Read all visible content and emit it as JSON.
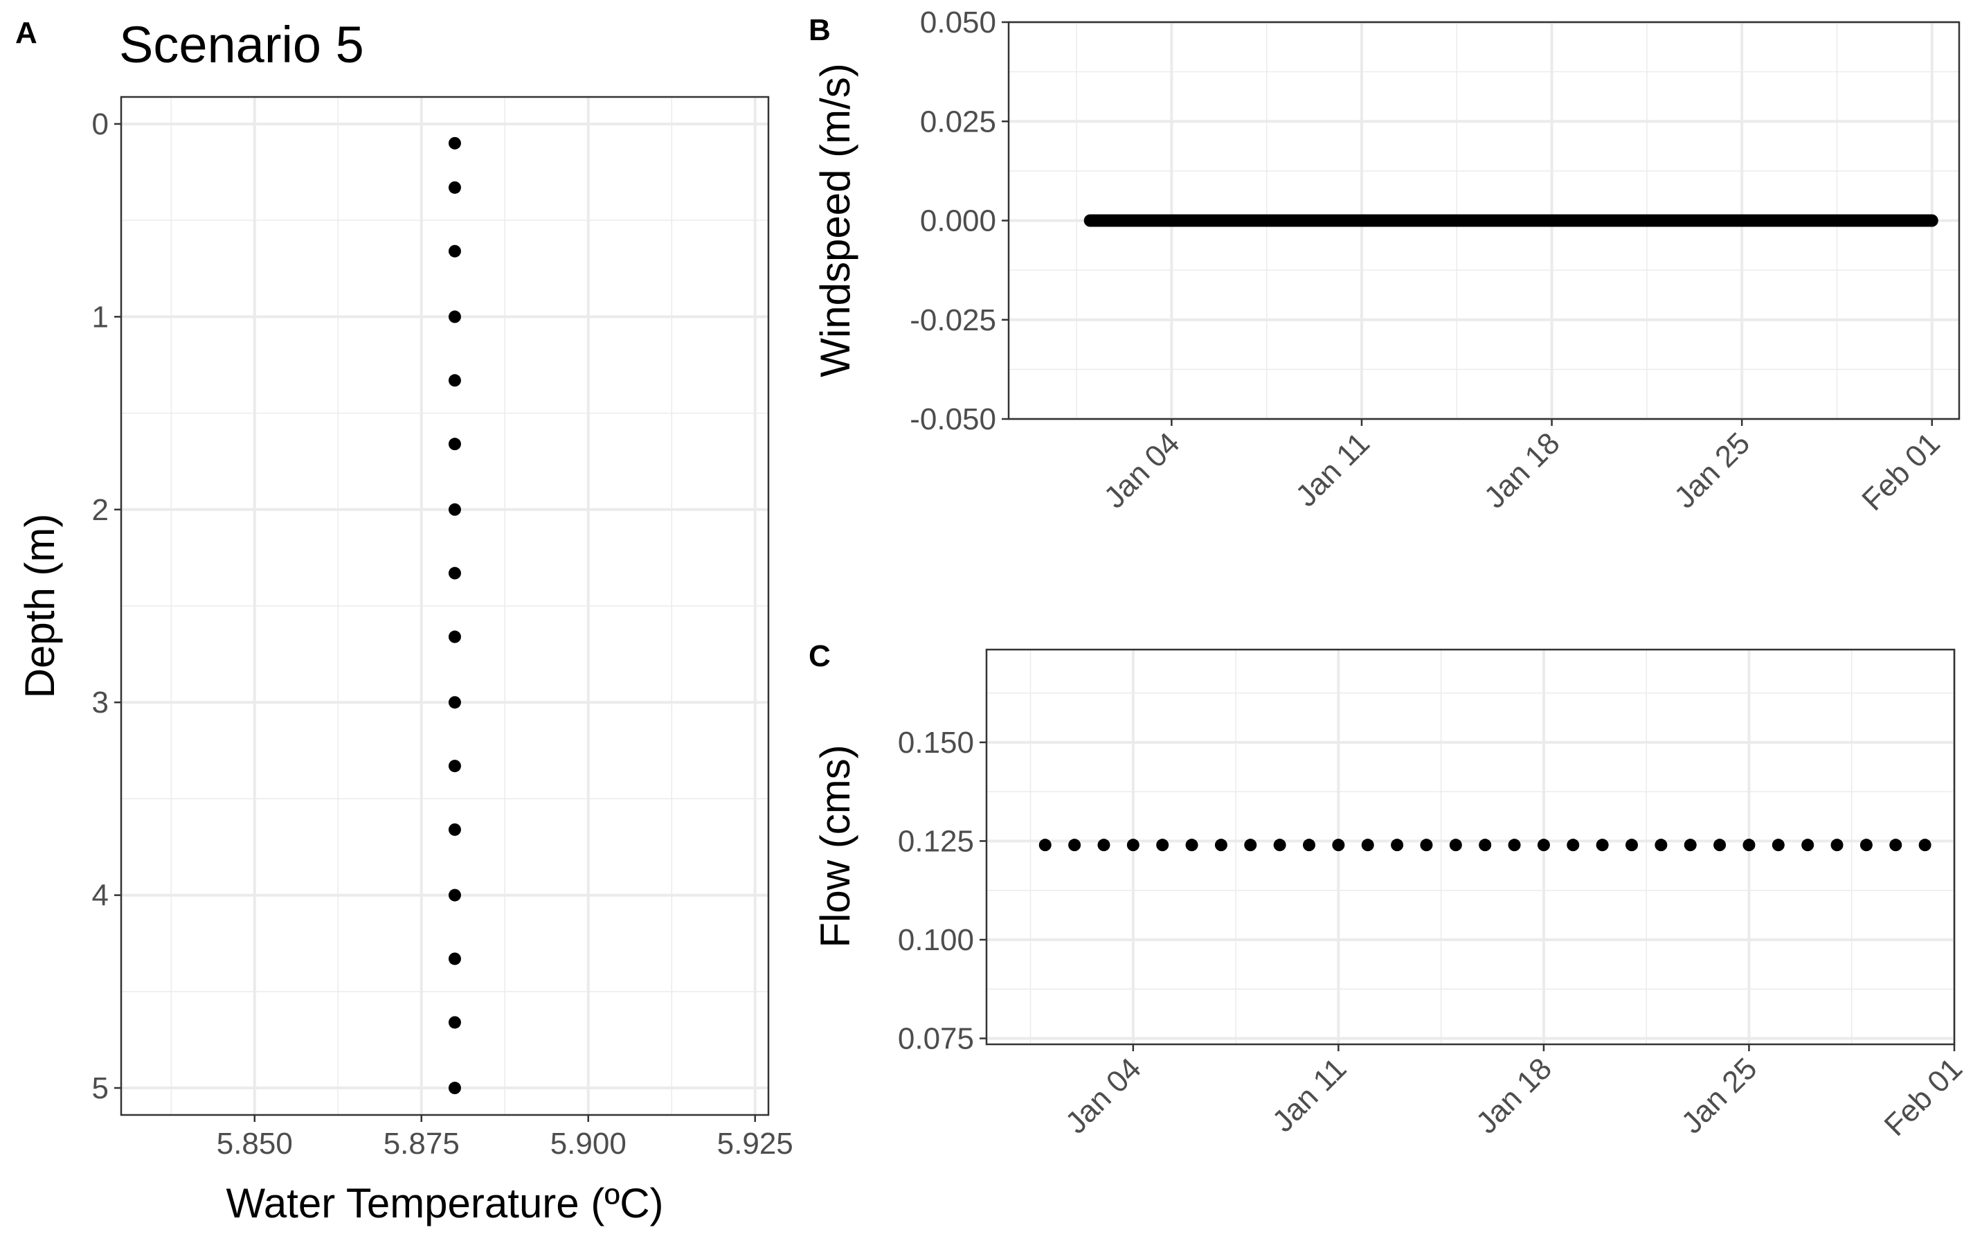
{
  "chart_data": [
    {
      "panel": "A",
      "type": "scatter",
      "title": "Scenario 5",
      "xlabel": "Water Temperature (ºC)",
      "ylabel": "Depth (m)",
      "xlim": [
        5.83,
        5.927
      ],
      "ylim": [
        5.14,
        -0.14
      ],
      "y_reversed": true,
      "x_ticks": [
        "5.850",
        "5.875",
        "5.900",
        "5.925"
      ],
      "x_tick_values": [
        5.85,
        5.875,
        5.9,
        5.925
      ],
      "y_ticks": [
        "0",
        "1",
        "2",
        "3",
        "4",
        "5"
      ],
      "y_tick_values": [
        0,
        1,
        2,
        3,
        4,
        5
      ],
      "grid": true,
      "point_color": "#000000",
      "points": [
        {
          "x": 5.88,
          "y": 0.1
        },
        {
          "x": 5.88,
          "y": 0.33
        },
        {
          "x": 5.88,
          "y": 0.66
        },
        {
          "x": 5.88,
          "y": 1.0
        },
        {
          "x": 5.88,
          "y": 1.33
        },
        {
          "x": 5.88,
          "y": 1.66
        },
        {
          "x": 5.88,
          "y": 2.0
        },
        {
          "x": 5.88,
          "y": 2.33
        },
        {
          "x": 5.88,
          "y": 2.66
        },
        {
          "x": 5.88,
          "y": 3.0
        },
        {
          "x": 5.88,
          "y": 3.33
        },
        {
          "x": 5.88,
          "y": 3.66
        },
        {
          "x": 5.88,
          "y": 4.0
        },
        {
          "x": 5.88,
          "y": 4.33
        },
        {
          "x": 5.88,
          "y": 4.66
        },
        {
          "x": 5.88,
          "y": 5.0
        }
      ]
    },
    {
      "panel": "B",
      "type": "scatter",
      "xlabel": "",
      "ylabel": "Windspeed (m/s)",
      "x_type": "date",
      "xlim": [
        "2024-12-29",
        "2025-02-02"
      ],
      "ylim": [
        -0.05,
        0.05
      ],
      "x_ticks": [
        "Jan 04",
        "Jan 11",
        "Jan 18",
        "Jan 25",
        "Feb 01"
      ],
      "x_tick_values": [
        "2025-01-04",
        "2025-01-11",
        "2025-01-18",
        "2025-01-25",
        "2025-02-01"
      ],
      "y_ticks": [
        "0.050",
        "0.025",
        "0.000",
        "-0.025",
        "-0.050"
      ],
      "y_tick_values": [
        0.05,
        0.025,
        0.0,
        -0.025,
        -0.05
      ],
      "grid": true,
      "point_color": "#000000",
      "points_per_day": 24,
      "x_range": [
        "2025-01-01",
        "2025-02-01"
      ],
      "y_value": 0.0
    },
    {
      "panel": "C",
      "type": "scatter",
      "xlabel": "",
      "ylabel": "Flow (cms)",
      "x_type": "date",
      "xlim": [
        "2024-12-30",
        "2025-02-01"
      ],
      "ylim": [
        0.0735,
        0.1735
      ],
      "x_ticks": [
        "Jan 04",
        "Jan 11",
        "Jan 18",
        "Jan 25",
        "Feb 01"
      ],
      "x_tick_values": [
        "2025-01-04",
        "2025-01-11",
        "2025-01-18",
        "2025-01-25",
        "2025-02-01"
      ],
      "y_ticks": [
        "0.150",
        "0.125",
        "0.100",
        "0.075"
      ],
      "y_tick_values": [
        0.15,
        0.125,
        0.1,
        0.075
      ],
      "grid": true,
      "point_color": "#000000",
      "points": [
        {
          "x": "2025-01-01",
          "y": 0.124
        },
        {
          "x": "2025-01-02",
          "y": 0.124
        },
        {
          "x": "2025-01-03",
          "y": 0.124
        },
        {
          "x": "2025-01-04",
          "y": 0.124
        },
        {
          "x": "2025-01-05",
          "y": 0.124
        },
        {
          "x": "2025-01-06",
          "y": 0.124
        },
        {
          "x": "2025-01-07",
          "y": 0.124
        },
        {
          "x": "2025-01-08",
          "y": 0.124
        },
        {
          "x": "2025-01-09",
          "y": 0.124
        },
        {
          "x": "2025-01-10",
          "y": 0.124
        },
        {
          "x": "2025-01-11",
          "y": 0.124
        },
        {
          "x": "2025-01-12",
          "y": 0.124
        },
        {
          "x": "2025-01-13",
          "y": 0.124
        },
        {
          "x": "2025-01-14",
          "y": 0.124
        },
        {
          "x": "2025-01-15",
          "y": 0.124
        },
        {
          "x": "2025-01-16",
          "y": 0.124
        },
        {
          "x": "2025-01-17",
          "y": 0.124
        },
        {
          "x": "2025-01-18",
          "y": 0.124
        },
        {
          "x": "2025-01-19",
          "y": 0.124
        },
        {
          "x": "2025-01-20",
          "y": 0.124
        },
        {
          "x": "2025-01-21",
          "y": 0.124
        },
        {
          "x": "2025-01-22",
          "y": 0.124
        },
        {
          "x": "2025-01-23",
          "y": 0.124
        },
        {
          "x": "2025-01-24",
          "y": 0.124
        },
        {
          "x": "2025-01-25",
          "y": 0.124
        },
        {
          "x": "2025-01-26",
          "y": 0.124
        },
        {
          "x": "2025-01-27",
          "y": 0.124
        },
        {
          "x": "2025-01-28",
          "y": 0.124
        },
        {
          "x": "2025-01-29",
          "y": 0.124
        },
        {
          "x": "2025-01-30",
          "y": 0.124
        },
        {
          "x": "2025-01-31",
          "y": 0.124
        }
      ]
    }
  ]
}
